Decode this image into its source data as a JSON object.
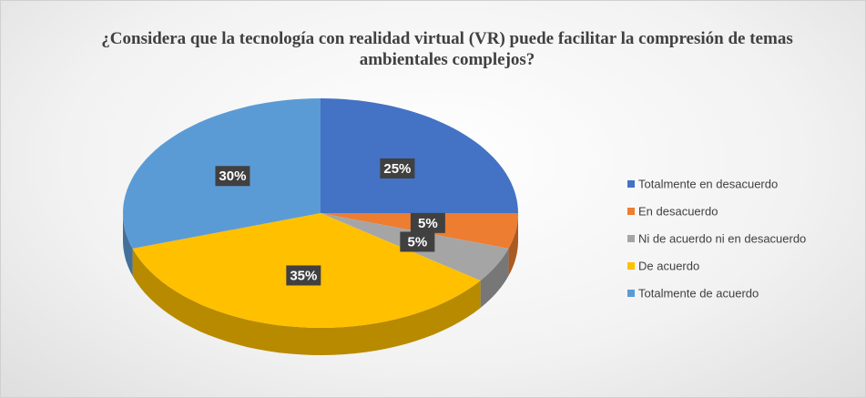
{
  "chart_data": {
    "type": "pie",
    "title": "¿Considera que la tecnología con realidad virtual (VR) puede facilitar la compresión de temas ambientales complejos?",
    "categories": [
      "Totalmente en desacuerdo",
      "En desacuerdo",
      "Ni de acuerdo ni en desacuerdo",
      "De acuerdo",
      "Totalmente de acuerdo"
    ],
    "values": [
      25,
      5,
      5,
      35,
      30
    ],
    "value_labels": [
      "25%",
      "5%",
      "5%",
      "35%",
      "30%"
    ],
    "colors": [
      "#4472c4",
      "#ed7d31",
      "#a5a5a5",
      "#ffc000",
      "#5b9bd5"
    ],
    "legend": "right"
  }
}
